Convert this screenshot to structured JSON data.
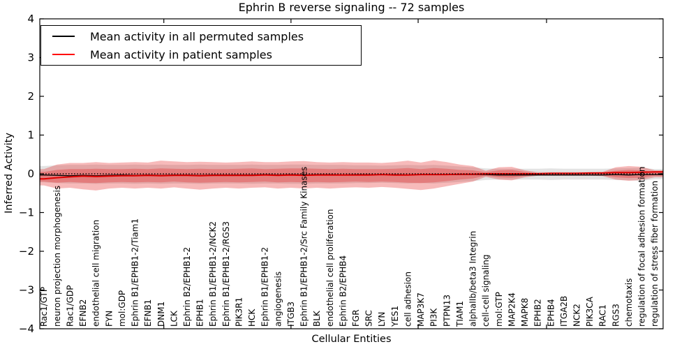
{
  "title": "Ephrin B reverse signaling -- 72 samples",
  "legend": {
    "entries": [
      {
        "label": "Mean activity in all permuted samples",
        "color": "#000000"
      },
      {
        "label": "Mean activity in patient samples",
        "color": "#ff0000"
      }
    ]
  },
  "colors": {
    "patient_line": "#e00000",
    "permuted_line": "#000000",
    "red_band": "#e41a1c",
    "gray_band": "#999999",
    "zero_line": "#000000",
    "frame": "#000000"
  },
  "chart_data": {
    "type": "line",
    "title": "Ephrin B reverse signaling -- 72 samples",
    "xlabel": "Cellular Entities",
    "ylabel": "Inferred Activity",
    "ylim": [
      -4,
      4
    ],
    "yticks": [
      4,
      3,
      2,
      1,
      0,
      -1,
      -2,
      -3,
      -4
    ],
    "grid": false,
    "legend_position": "upper left",
    "zero_reference_line": {
      "y": 0,
      "style": "dotted",
      "color": "#000000"
    },
    "categories": [
      "Rac1/GTP",
      "neuron projection morphogenesis",
      "Rac1/GDP",
      "EFNB2",
      "endothelial cell migration",
      "FYN",
      "mol:GDP",
      "Ephrin B1/EPHB1-2/Tiam1",
      "EFNB1",
      "DNM1",
      "LCK",
      "Ephrin B2/EPHB1-2",
      "EPHB1",
      "Ephrin B1/EPHB1-2/NCK2",
      "Ephrin B1/EPHB1-2/RGS3",
      "PIK3R1",
      "HCK",
      "Ephrin B1/EPHB1-2",
      "angiogenesis",
      "ITGB3",
      "Ephrin B1/EPHB1-2/Src Family Kinases",
      "BLK",
      "endothelial cell proliferation",
      "Ephrin B2/EPHB4",
      "FGR",
      "SRC",
      "LYN",
      "YES1",
      "cell adhesion",
      "MAP3K7",
      "PI3K",
      "PTPN13",
      "TIAM1",
      "alphaIIb/beta3 Integrin",
      "cell-cell signaling",
      "mol:GTP",
      "MAP2K4",
      "MAPK8",
      "EPHB2",
      "EPHB4",
      "ITGA2B",
      "NCK2",
      "PIK3CA",
      "RAC1",
      "RGS3",
      "chemotaxis",
      "regulation of focal adhesion formation",
      "regulation of stress fiber formation"
    ],
    "series": [
      {
        "name": "Mean activity in all permuted samples",
        "color": "#000000",
        "values": [
          -0.03,
          -0.04,
          -0.05,
          -0.04,
          -0.05,
          -0.04,
          -0.03,
          -0.04,
          -0.03,
          -0.04,
          -0.03,
          -0.03,
          -0.04,
          -0.03,
          -0.03,
          -0.03,
          -0.03,
          -0.02,
          -0.03,
          -0.02,
          -0.03,
          -0.02,
          -0.02,
          -0.03,
          -0.02,
          -0.02,
          -0.02,
          -0.02,
          -0.03,
          -0.02,
          -0.02,
          -0.02,
          -0.02,
          -0.02,
          -0.02,
          -0.03,
          -0.03,
          -0.03,
          -0.03,
          -0.03,
          -0.03,
          -0.03,
          -0.03,
          -0.03,
          -0.02,
          -0.03,
          -0.02,
          -0.02
        ]
      },
      {
        "name": "Mean activity in patient samples",
        "color": "#e00000",
        "values": [
          -0.13,
          -0.1,
          -0.08,
          -0.06,
          -0.07,
          -0.06,
          -0.05,
          -0.05,
          -0.04,
          -0.05,
          -0.04,
          -0.04,
          -0.05,
          -0.04,
          -0.04,
          -0.04,
          -0.04,
          -0.03,
          -0.04,
          -0.03,
          -0.04,
          -0.03,
          -0.03,
          -0.03,
          -0.03,
          -0.03,
          -0.02,
          -0.03,
          -0.03,
          -0.02,
          -0.02,
          -0.02,
          -0.01,
          -0.01,
          0,
          0,
          0,
          0,
          0,
          0.01,
          0.01,
          0.01,
          0.02,
          0.02,
          0.03,
          0.03,
          0.04,
          0.05
        ]
      }
    ],
    "bands": [
      {
        "name": "permuted-samples-spread",
        "color": "#999999",
        "opacity": 0.28,
        "upper": [
          0.2,
          0.22,
          0.23,
          0.23,
          0.24,
          0.23,
          0.23,
          0.24,
          0.23,
          0.24,
          0.23,
          0.23,
          0.24,
          0.23,
          0.23,
          0.23,
          0.24,
          0.23,
          0.23,
          0.24,
          0.24,
          0.23,
          0.23,
          0.23,
          0.22,
          0.22,
          0.21,
          0.22,
          0.23,
          0.22,
          0.23,
          0.21,
          0.19,
          0.17,
          0.14,
          0.13,
          0.13,
          0.13,
          0.13,
          0.14,
          0.13,
          0.13,
          0.13,
          0.13,
          0.14,
          0.15,
          0.16,
          0.12
        ],
        "lower": [
          -0.22,
          -0.24,
          -0.25,
          -0.25,
          -0.26,
          -0.25,
          -0.25,
          -0.26,
          -0.25,
          -0.26,
          -0.25,
          -0.25,
          -0.26,
          -0.25,
          -0.25,
          -0.25,
          -0.26,
          -0.25,
          -0.25,
          -0.26,
          -0.26,
          -0.25,
          -0.25,
          -0.25,
          -0.24,
          -0.24,
          -0.23,
          -0.24,
          -0.25,
          -0.24,
          -0.25,
          -0.23,
          -0.21,
          -0.19,
          -0.16,
          -0.15,
          -0.15,
          -0.15,
          -0.15,
          -0.16,
          -0.15,
          -0.15,
          -0.15,
          -0.15,
          -0.16,
          -0.17,
          -0.18,
          -0.14
        ]
      },
      {
        "name": "patient-samples-outer-spread",
        "color": "#e41a1c",
        "opacity": 0.3,
        "upper": [
          0.12,
          0.24,
          0.28,
          0.28,
          0.3,
          0.28,
          0.29,
          0.3,
          0.29,
          0.34,
          0.32,
          0.3,
          0.31,
          0.3,
          0.29,
          0.3,
          0.32,
          0.3,
          0.3,
          0.32,
          0.33,
          0.3,
          0.29,
          0.3,
          0.29,
          0.29,
          0.28,
          0.3,
          0.34,
          0.29,
          0.35,
          0.3,
          0.24,
          0.2,
          0.08,
          0.17,
          0.18,
          0.09,
          0.04,
          0.04,
          0.04,
          0.04,
          0.04,
          0.05,
          0.17,
          0.2,
          0.18,
          0.09
        ],
        "lower": [
          -0.3,
          -0.38,
          -0.36,
          -0.4,
          -0.43,
          -0.38,
          -0.36,
          -0.38,
          -0.36,
          -0.38,
          -0.35,
          -0.38,
          -0.41,
          -0.38,
          -0.36,
          -0.38,
          -0.36,
          -0.35,
          -0.38,
          -0.36,
          -0.38,
          -0.36,
          -0.38,
          -0.36,
          -0.35,
          -0.36,
          -0.34,
          -0.36,
          -0.39,
          -0.42,
          -0.38,
          -0.32,
          -0.26,
          -0.2,
          -0.08,
          -0.15,
          -0.17,
          -0.09,
          -0.05,
          -0.05,
          -0.05,
          -0.05,
          -0.05,
          -0.06,
          -0.15,
          -0.18,
          -0.16,
          -0.09
        ]
      },
      {
        "name": "patient-samples-inner-spread",
        "color": "#e41a1c",
        "opacity": 0.3,
        "upper": [
          0.05,
          0.1,
          0.12,
          0.12,
          0.13,
          0.12,
          0.12,
          0.13,
          0.12,
          0.14,
          0.13,
          0.12,
          0.13,
          0.12,
          0.12,
          0.13,
          0.14,
          0.12,
          0.13,
          0.14,
          0.14,
          0.13,
          0.12,
          0.13,
          0.12,
          0.12,
          0.12,
          0.13,
          0.15,
          0.12,
          0.15,
          0.13,
          0.1,
          0.09,
          0.04,
          0.09,
          0.1,
          0.05,
          0.02,
          0.02,
          0.02,
          0.02,
          0.02,
          0.03,
          0.08,
          0.1,
          0.09,
          0.04
        ],
        "lower": [
          -0.2,
          -0.23,
          -0.21,
          -0.23,
          -0.24,
          -0.22,
          -0.21,
          -0.22,
          -0.21,
          -0.22,
          -0.2,
          -0.22,
          -0.23,
          -0.22,
          -0.21,
          -0.22,
          -0.21,
          -0.2,
          -0.22,
          -0.21,
          -0.22,
          -0.21,
          -0.22,
          -0.21,
          -0.2,
          -0.21,
          -0.2,
          -0.21,
          -0.23,
          -0.24,
          -0.22,
          -0.19,
          -0.15,
          -0.12,
          -0.05,
          -0.09,
          -0.1,
          -0.06,
          -0.03,
          -0.03,
          -0.03,
          -0.03,
          -0.03,
          -0.04,
          -0.09,
          -0.11,
          -0.1,
          -0.05
        ]
      }
    ]
  }
}
